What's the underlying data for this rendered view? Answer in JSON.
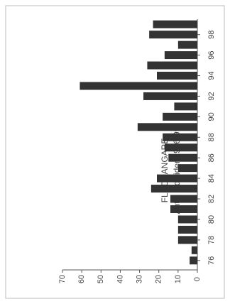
{
  "chart_data": {
    "type": "bar",
    "orientation": "horizontal",
    "title": "FLODSANGARE",
    "subtitle": "Antal individer 1976-99",
    "categories": [
      "76",
      null,
      "78",
      null,
      "80",
      null,
      "82",
      null,
      "84",
      null,
      "86",
      null,
      "88",
      null,
      "90",
      null,
      "92",
      null,
      "94",
      null,
      "96",
      null,
      "98",
      null
    ],
    "values": [
      4,
      3,
      10,
      10,
      10,
      14,
      14,
      24,
      21,
      10,
      15,
      17,
      18,
      31,
      18,
      12,
      28,
      61,
      21,
      26,
      17,
      10,
      25,
      23
    ],
    "color": "#333333",
    "ylim": [
      0,
      70
    ],
    "yticks": [
      0,
      10,
      20,
      30,
      40,
      50,
      60,
      70
    ]
  }
}
